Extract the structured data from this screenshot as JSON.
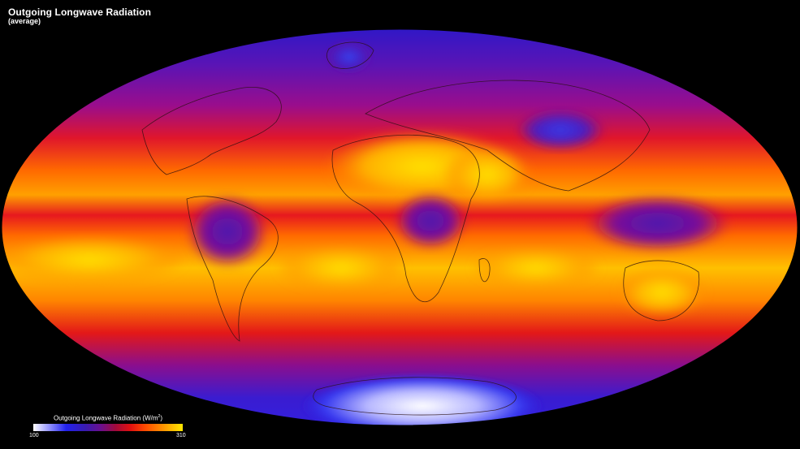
{
  "title": "Outgoing Longwave Radiation",
  "subtitle": "(average)",
  "legend": {
    "label": "Outgoing Longwave Radiation (W/m",
    "label_sup": "2",
    "label_close": ")",
    "min": "100",
    "max": "310",
    "colors": [
      "#ffffff",
      "#2222ee",
      "#6a1090",
      "#e01010",
      "#ff9500",
      "#ffe800"
    ]
  },
  "map": {
    "projection": "mollweide",
    "variable": "outgoing longwave radiation",
    "colors": {
      "background": "#000000",
      "polar": "#3d1ecf",
      "midlatitude": "#8f0f9a",
      "subtropical": "#ff3a00",
      "desert": "#ffd800",
      "tropical_convection": "#6a14a0",
      "coastline": "#222222"
    }
  }
}
